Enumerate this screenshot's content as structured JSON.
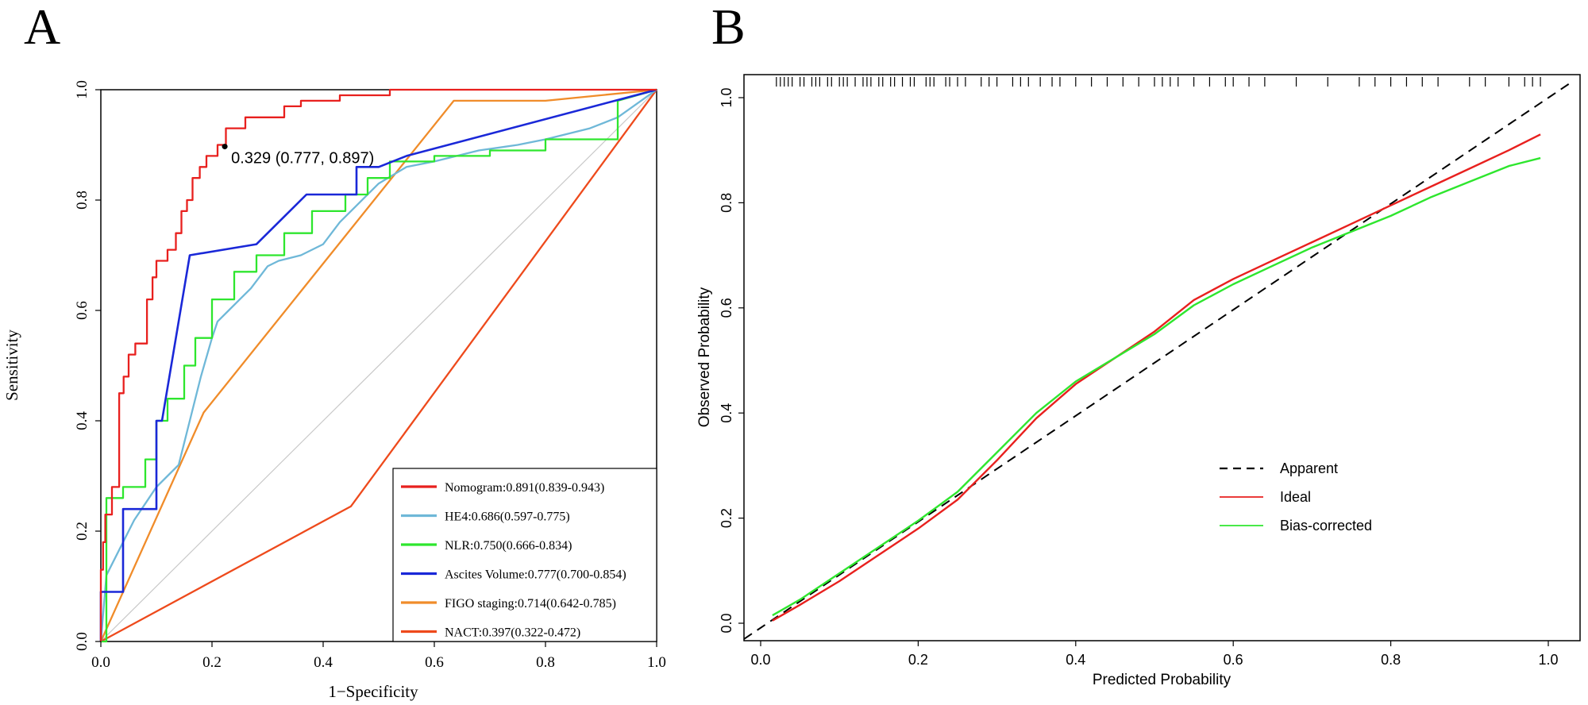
{
  "chart_data": [
    {
      "panel": "A",
      "type": "line",
      "subtype": "roc",
      "xlabel": "1−Specificity",
      "ylabel": "Sensitivity",
      "xlim": [
        0,
        1
      ],
      "ylim": [
        0,
        1
      ],
      "xticks": [
        "0.0",
        "0.2",
        "0.4",
        "0.6",
        "0.8",
        "1.0"
      ],
      "yticks": [
        "0.0",
        "0.2",
        "0.4",
        "0.6",
        "0.8",
        "1.0"
      ],
      "reference_line": {
        "color": "#c8c8c8",
        "x": [
          0,
          1
        ],
        "y": [
          0,
          1
        ]
      },
      "annotation": {
        "label": "0.329 (0.777, 0.897)",
        "x": 0.223,
        "y": 0.897
      },
      "legend_position": "bottom-right",
      "series": [
        {
          "name": "Nomogram:0.891(0.839-0.943)",
          "color": "#e8201e",
          "x": [
            0,
            0,
            0.004,
            0.004,
            0.008,
            0.008,
            0.02,
            0.02,
            0.033,
            0.033,
            0.041,
            0.041,
            0.05,
            0.05,
            0.062,
            0.062,
            0.083,
            0.083,
            0.093,
            0.093,
            0.1,
            0.1,
            0.12,
            0.12,
            0.135,
            0.135,
            0.145,
            0.145,
            0.155,
            0.155,
            0.165,
            0.165,
            0.178,
            0.178,
            0.19,
            0.19,
            0.21,
            0.21,
            0.225,
            0.225,
            0.26,
            0.26,
            0.33,
            0.33,
            0.36,
            0.36,
            0.43,
            0.43,
            0.52,
            0.52,
            0.785,
            0.785,
            1
          ],
          "y": [
            0,
            0.13,
            0.13,
            0.18,
            0.18,
            0.23,
            0.23,
            0.28,
            0.28,
            0.45,
            0.45,
            0.48,
            0.48,
            0.52,
            0.52,
            0.54,
            0.54,
            0.62,
            0.62,
            0.66,
            0.66,
            0.69,
            0.69,
            0.71,
            0.71,
            0.74,
            0.74,
            0.78,
            0.78,
            0.8,
            0.8,
            0.84,
            0.84,
            0.86,
            0.86,
            0.88,
            0.88,
            0.9,
            0.9,
            0.93,
            0.93,
            0.95,
            0.95,
            0.97,
            0.97,
            0.98,
            0.98,
            0.99,
            0.99,
            1,
            1,
            1,
            1
          ]
        },
        {
          "name": "HE4:0.686(0.597-0.775)",
          "color": "#6fb8d8",
          "x": [
            0,
            0.01,
            0.02,
            0.03,
            0.05,
            0.06,
            0.08,
            0.1,
            0.12,
            0.14,
            0.15,
            0.16,
            0.18,
            0.2,
            0.21,
            0.23,
            0.25,
            0.27,
            0.3,
            0.32,
            0.36,
            0.4,
            0.43,
            0.46,
            0.5,
            0.55,
            0.6,
            0.68,
            0.75,
            0.8,
            0.88,
            0.93,
            1
          ],
          "y": [
            0,
            0.12,
            0.14,
            0.16,
            0.2,
            0.22,
            0.25,
            0.28,
            0.3,
            0.32,
            0.36,
            0.4,
            0.48,
            0.55,
            0.58,
            0.6,
            0.62,
            0.64,
            0.68,
            0.69,
            0.7,
            0.72,
            0.76,
            0.79,
            0.83,
            0.86,
            0.87,
            0.89,
            0.9,
            0.91,
            0.93,
            0.95,
            1
          ]
        },
        {
          "name": "NLR:0.750(0.666-0.834)",
          "color": "#2ee62e",
          "x": [
            0,
            0.01,
            0.01,
            0.04,
            0.04,
            0.08,
            0.08,
            0.1,
            0.1,
            0.12,
            0.12,
            0.15,
            0.15,
            0.17,
            0.17,
            0.2,
            0.2,
            0.24,
            0.24,
            0.28,
            0.28,
            0.33,
            0.33,
            0.38,
            0.38,
            0.44,
            0.44,
            0.48,
            0.48,
            0.52,
            0.52,
            0.6,
            0.6,
            0.7,
            0.7,
            0.8,
            0.8,
            0.93,
            0.93,
            1
          ],
          "y": [
            0,
            0,
            0.26,
            0.26,
            0.28,
            0.28,
            0.33,
            0.33,
            0.4,
            0.4,
            0.44,
            0.44,
            0.5,
            0.5,
            0.55,
            0.55,
            0.62,
            0.62,
            0.67,
            0.67,
            0.7,
            0.7,
            0.74,
            0.74,
            0.78,
            0.78,
            0.81,
            0.81,
            0.84,
            0.84,
            0.87,
            0.87,
            0.88,
            0.88,
            0.89,
            0.89,
            0.91,
            0.91,
            0.98,
            1
          ]
        },
        {
          "name": "Ascites Volume:0.777(0.700-0.854)",
          "color": "#1a28d8",
          "x": [
            0,
            0,
            0.04,
            0.04,
            0.1,
            0.1,
            0.11,
            0.16,
            0.28,
            0.28,
            0.37,
            0.37,
            0.46,
            0.46,
            0.5,
            0.55,
            1
          ],
          "y": [
            0,
            0.09,
            0.09,
            0.24,
            0.24,
            0.4,
            0.4,
            0.7,
            0.72,
            0.72,
            0.81,
            0.81,
            0.81,
            0.86,
            0.86,
            0.88,
            1
          ]
        },
        {
          "name": "FIGO staging:0.714(0.642-0.785)",
          "color": "#f08c2a",
          "x": [
            0,
            0.185,
            0.635,
            0.8,
            1
          ],
          "y": [
            0,
            0.415,
            0.98,
            0.98,
            1
          ]
        },
        {
          "name": "NACT:0.397(0.322-0.472)",
          "color": "#ee4a1c",
          "x": [
            0,
            0.45,
            1
          ],
          "y": [
            0,
            0.245,
            1
          ]
        }
      ]
    },
    {
      "panel": "B",
      "type": "line",
      "subtype": "calibration",
      "xlabel": "Predicted Probability",
      "ylabel": "Observed Probability",
      "xlim": [
        0,
        1
      ],
      "ylim": [
        0,
        1
      ],
      "xticks": [
        "0.0",
        "0.2",
        "0.4",
        "0.6",
        "0.8",
        "1.0"
      ],
      "yticks": [
        "0.0",
        "0.2",
        "0.4",
        "0.6",
        "0.8",
        "1.0"
      ],
      "legend_position": "middle-right",
      "rug": [
        0.02,
        0.025,
        0.03,
        0.035,
        0.04,
        0.05,
        0.055,
        0.065,
        0.07,
        0.075,
        0.085,
        0.09,
        0.1,
        0.105,
        0.11,
        0.12,
        0.13,
        0.135,
        0.14,
        0.15,
        0.155,
        0.165,
        0.17,
        0.18,
        0.19,
        0.195,
        0.21,
        0.215,
        0.22,
        0.235,
        0.24,
        0.25,
        0.26,
        0.28,
        0.29,
        0.3,
        0.32,
        0.33,
        0.34,
        0.355,
        0.37,
        0.38,
        0.4,
        0.42,
        0.44,
        0.46,
        0.48,
        0.5,
        0.51,
        0.52,
        0.53,
        0.55,
        0.57,
        0.59,
        0.6,
        0.62,
        0.64,
        0.68,
        0.72,
        0.76,
        0.78,
        0.8,
        0.82,
        0.84,
        0.86,
        0.9,
        0.92,
        0.95,
        0.97,
        0.98,
        0.99
      ],
      "series": [
        {
          "name": "Apparent",
          "color": "#000000",
          "dash": "12,8",
          "x": [
            -0.03,
            1.03
          ],
          "y": [
            -0.03,
            1.03
          ]
        },
        {
          "name": "Ideal",
          "color": "#e8201e",
          "x": [
            0.015,
            0.05,
            0.1,
            0.15,
            0.2,
            0.25,
            0.3,
            0.35,
            0.4,
            0.45,
            0.5,
            0.55,
            0.6,
            0.65,
            0.7,
            0.75,
            0.8,
            0.85,
            0.9,
            0.95,
            0.99
          ],
          "y": [
            0.005,
            0.035,
            0.08,
            0.13,
            0.18,
            0.235,
            0.31,
            0.39,
            0.455,
            0.505,
            0.555,
            0.615,
            0.655,
            0.69,
            0.725,
            0.76,
            0.795,
            0.83,
            0.865,
            0.9,
            0.93
          ]
        },
        {
          "name": "Bias-corrected",
          "color": "#2ee62e",
          "x": [
            0.015,
            0.05,
            0.1,
            0.15,
            0.2,
            0.25,
            0.3,
            0.35,
            0.4,
            0.45,
            0.5,
            0.55,
            0.6,
            0.65,
            0.7,
            0.75,
            0.8,
            0.85,
            0.9,
            0.95,
            0.99
          ],
          "y": [
            0.015,
            0.045,
            0.095,
            0.145,
            0.195,
            0.25,
            0.325,
            0.4,
            0.46,
            0.505,
            0.55,
            0.605,
            0.645,
            0.68,
            0.715,
            0.745,
            0.775,
            0.81,
            0.84,
            0.87,
            0.885
          ]
        }
      ]
    }
  ],
  "panels": {
    "a_label": "A",
    "b_label": "B"
  }
}
